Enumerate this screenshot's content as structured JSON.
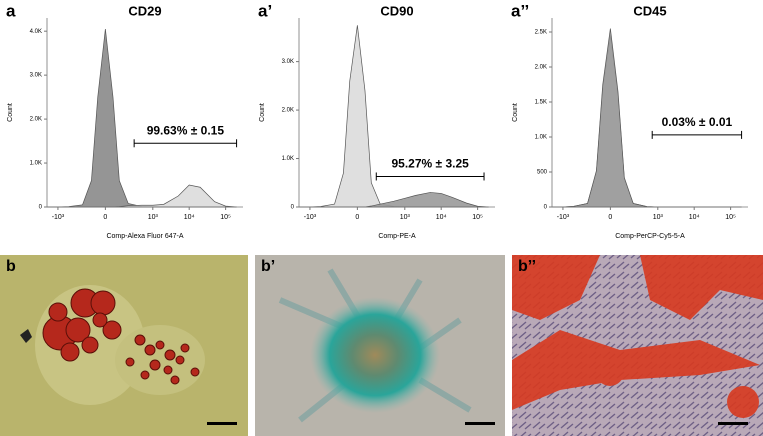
{
  "chart_data": [
    {
      "type": "area",
      "panel": "a",
      "title": "CD29",
      "xlabel": "Comp-Alexa Fluor 647-A",
      "ylabel": "Count",
      "xscale": "asinh",
      "x": [
        -2000,
        -1000,
        -500,
        -200,
        -100,
        -50,
        0,
        50,
        100,
        200,
        500,
        1000,
        2000,
        5000,
        10000,
        20000,
        50000,
        100000,
        200000
      ],
      "series": [
        {
          "color": "#8a8a8a",
          "values": [
            0,
            0,
            10,
            50,
            600,
            2500,
            4050,
            2500,
            600,
            80,
            10,
            0,
            0,
            0,
            0,
            0,
            0,
            0,
            0
          ]
        },
        {
          "color": "#dcdcdc",
          "values": [
            0,
            0,
            0,
            0,
            0,
            0,
            0,
            0,
            10,
            30,
            40,
            40,
            60,
            250,
            500,
            450,
            120,
            20,
            0
          ]
        }
      ],
      "xlim": [
        -2000,
        300000
      ],
      "ylim": [
        0,
        4300
      ],
      "xticks": [
        {
          "value": -1000,
          "label": "-10³"
        },
        0,
        {
          "value": 1000,
          "label": "10³"
        },
        {
          "value": 10000,
          "label": "10⁴"
        },
        {
          "value": 100000,
          "label": "10⁵"
        }
      ],
      "yticks": [
        0,
        {
          "value": 1000,
          "label": "1.0K"
        },
        {
          "value": 2000,
          "label": "2.0K"
        },
        {
          "value": 3000,
          "label": "3.0K"
        },
        {
          "value": 4000,
          "label": "4.0K"
        }
      ],
      "gate": {
        "x": [
          300,
          200000
        ],
        "y": 1450,
        "label": "99.63% ± 0.15"
      }
    },
    {
      "type": "area",
      "panel": "a’",
      "title": "CD90",
      "xlabel": "Comp-PE-A",
      "ylabel": "Count",
      "xscale": "asinh",
      "x": [
        -2000,
        -1000,
        -500,
        -200,
        -100,
        -50,
        0,
        50,
        100,
        200,
        500,
        1000,
        2000,
        5000,
        10000,
        20000,
        50000,
        100000,
        200000
      ],
      "series": [
        {
          "color": "#dcdcdc",
          "values": [
            0,
            0,
            10,
            60,
            700,
            2600,
            3750,
            2400,
            500,
            60,
            10,
            0,
            0,
            0,
            0,
            0,
            0,
            0,
            0
          ]
        },
        {
          "color": "#9a9a9a",
          "values": [
            0,
            0,
            0,
            0,
            0,
            0,
            0,
            0,
            20,
            60,
            120,
            180,
            240,
            300,
            280,
            200,
            80,
            15,
            0
          ]
        }
      ],
      "xlim": [
        -2000,
        300000
      ],
      "ylim": [
        0,
        3900
      ],
      "xticks": [
        {
          "value": -1000,
          "label": "-10³"
        },
        0,
        {
          "value": 1000,
          "label": "10³"
        },
        {
          "value": 10000,
          "label": "10⁴"
        },
        {
          "value": 100000,
          "label": "10⁵"
        }
      ],
      "yticks": [
        0,
        {
          "value": 1000,
          "label": "1.0K"
        },
        {
          "value": 2000,
          "label": "2.0K"
        },
        {
          "value": 3000,
          "label": "3.0K"
        }
      ],
      "gate": {
        "x": [
          150,
          150000
        ],
        "y": 630,
        "label": "95.27% ± 3.25"
      }
    },
    {
      "type": "area",
      "panel": "a’’",
      "title": "CD45",
      "xlabel": "Comp-PerCP-Cy5-5-A",
      "ylabel": "Count",
      "xscale": "asinh",
      "x": [
        -2000,
        -1000,
        -500,
        -200,
        -100,
        -50,
        0,
        50,
        100,
        200,
        500,
        1000,
        2000,
        5000,
        10000,
        20000,
        50000,
        100000,
        200000
      ],
      "series": [
        {
          "color": "#dcdcdc",
          "values": [
            0,
            0,
            10,
            50,
            500,
            1700,
            2450,
            1600,
            400,
            50,
            5,
            0,
            0,
            0,
            0,
            0,
            0,
            0,
            0
          ]
        },
        {
          "color": "#999999",
          "values": [
            0,
            0,
            10,
            50,
            520,
            1750,
            2550,
            1650,
            420,
            50,
            5,
            0,
            0,
            0,
            0,
            0,
            0,
            0,
            0
          ]
        }
      ],
      "xlim": [
        -2000,
        300000
      ],
      "ylim": [
        0,
        2700
      ],
      "xticks": [
        {
          "value": -1000,
          "label": "-10³"
        },
        0,
        {
          "value": 1000,
          "label": "10³"
        },
        {
          "value": 10000,
          "label": "10⁴"
        },
        {
          "value": 100000,
          "label": "10⁵"
        }
      ],
      "yticks": [
        0,
        500,
        {
          "value": 1000,
          "label": "1.0K"
        },
        {
          "value": 1500,
          "label": "1.5K"
        },
        {
          "value": 2000,
          "label": "2.0K"
        },
        {
          "value": 2500,
          "label": "2.5K"
        }
      ],
      "gate": {
        "x": [
          700,
          200000
        ],
        "y": 1030,
        "label": "0.03% ± 0.01"
      }
    }
  ],
  "photo_panels": [
    "b",
    "b’",
    "b’’"
  ]
}
